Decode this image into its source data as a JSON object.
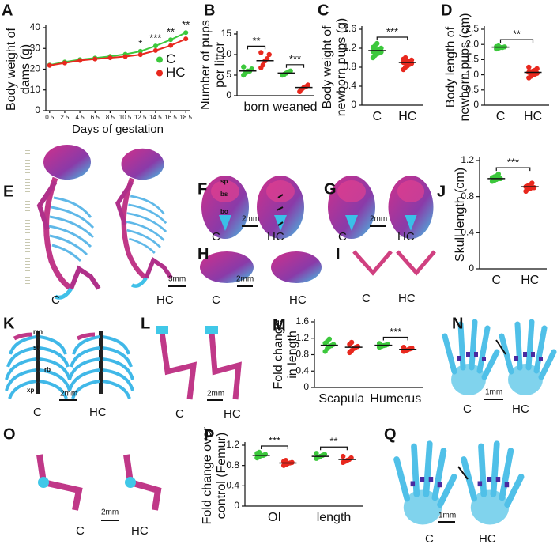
{
  "chart_data": [
    {
      "panel": "A",
      "type": "line",
      "ylabel": "Body weight of dams (g)",
      "xlabel": "Days of gestation",
      "x": [
        0.5,
        2.5,
        4.5,
        6.5,
        8.5,
        10.5,
        12.5,
        14.5,
        16.5,
        18.5
      ],
      "xlim": [
        0,
        19
      ],
      "xticks": [
        0.5,
        2.5,
        4.5,
        6.5,
        8.5,
        10.5,
        12.5,
        14.5,
        16.5,
        18.5
      ],
      "ylim": [
        0,
        40
      ],
      "yticks": [
        0,
        10,
        20,
        30,
        40
      ],
      "legend": "right",
      "series": [
        {
          "name": "C",
          "color": "#3cc83c",
          "values": [
            22,
            23.5,
            24.6,
            25.4,
            26.2,
            27.2,
            28.6,
            31.2,
            34.2,
            37.6
          ]
        },
        {
          "name": "HC",
          "color": "#e8281e",
          "values": [
            21.8,
            23,
            24.2,
            24.9,
            25.5,
            26.1,
            27,
            29,
            31.4,
            34.6
          ]
        }
      ],
      "annotations": [
        {
          "x": 12.5,
          "text": "*"
        },
        {
          "x": 14.5,
          "text": "***"
        },
        {
          "x": 16.5,
          "text": "**"
        },
        {
          "x": 18.5,
          "text": "**"
        }
      ]
    },
    {
      "panel": "B",
      "type": "strip",
      "ylabel": "Number of pups per litter",
      "categories": [
        "born",
        "weaned"
      ],
      "ylim": [
        0,
        15
      ],
      "yticks": [
        0,
        5,
        10,
        15
      ],
      "series": [
        {
          "color": "#3cc83c",
          "values": [
            [
              5,
              5.5,
              6,
              6,
              6.5,
              7
            ],
            [
              5,
              5.2,
              5.5,
              5.8,
              6
            ]
          ],
          "means": [
            6,
            5.5
          ]
        },
        {
          "color": "#e8281e",
          "values": [
            [
              6.8,
              7.5,
              8.5,
              9,
              10,
              10.5
            ],
            [
              1,
              1.6,
              2,
              2.2,
              2.6
            ]
          ],
          "means": [
            8.5,
            2
          ]
        }
      ],
      "significance": [
        "**",
        "***"
      ]
    },
    {
      "panel": "C",
      "type": "strip",
      "ylabel": "Body weight of newborn pups (g)",
      "categories": [
        "C",
        "HC"
      ],
      "ylim": [
        0,
        1.6
      ],
      "yticks": [
        0,
        0.4,
        0.8,
        1.2,
        1.6
      ],
      "series": [
        {
          "color": "#3cc83c",
          "values": [
            [
              1.0,
              1.05,
              1.08,
              1.1,
              1.12,
              1.13,
              1.15,
              1.16,
              1.18,
              1.2,
              1.22,
              1.25,
              1.3
            ],
            null
          ],
          "means": [
            1.15,
            null
          ]
        },
        {
          "color": "#e8281e",
          "values": [
            null,
            [
              0.75,
              0.8,
              0.83,
              0.86,
              0.88,
              0.9,
              0.9,
              0.92,
              0.93,
              0.95,
              0.97,
              1.0
            ]
          ],
          "means": [
            null,
            0.9
          ]
        }
      ],
      "significance": "***"
    },
    {
      "panel": "D",
      "type": "strip",
      "ylabel": "Body length of newborn pups (cm)",
      "categories": [
        "C",
        "HC"
      ],
      "ylim": [
        0,
        2.5
      ],
      "yticks": [
        0,
        0.5,
        {
          "value": 1,
          "label": "1.0"
        },
        1.5,
        {
          "value": 2,
          "label": "2.0"
        },
        2.5
      ],
      "series": [
        {
          "color": "#3cc83c",
          "values": [
            [
              1.85,
              1.88,
              1.9,
              1.9,
              1.92,
              1.93,
              1.95
            ],
            null
          ],
          "means": [
            1.91,
            null
          ]
        },
        {
          "color": "#e8281e",
          "values": [
            null,
            [
              0.9,
              0.95,
              1.0,
              1.02,
              1.05,
              1.08,
              1.1,
              1.12,
              1.15,
              1.2,
              1.25
            ]
          ],
          "means": [
            null,
            1.08
          ]
        }
      ],
      "significance": "**"
    },
    {
      "panel": "J",
      "type": "strip",
      "ylabel": "Skull length (cm)",
      "categories": [
        "C",
        "HC"
      ],
      "ylim": [
        0,
        1.2
      ],
      "yticks": [
        0,
        0.4,
        0.8,
        1.2
      ],
      "series": [
        {
          "color": "#3cc83c",
          "values": [
            [
              0.97,
              0.98,
              0.99,
              1.0,
              1.0,
              1.01,
              1.02,
              1.03,
              1.05
            ],
            null
          ],
          "means": [
            1.0,
            null
          ]
        },
        {
          "color": "#e8281e",
          "values": [
            null,
            [
              0.86,
              0.88,
              0.89,
              0.9,
              0.9,
              0.91,
              0.92,
              0.93,
              0.95
            ]
          ],
          "means": [
            null,
            0.91
          ]
        }
      ],
      "significance": "***"
    },
    {
      "panel": "M",
      "type": "strip",
      "ylabel": "Fold change in length",
      "categories": [
        "Scapula",
        "Humerus"
      ],
      "ylim": [
        0,
        1.6
      ],
      "yticks": [
        0,
        0.4,
        0.8,
        1.2,
        1.6
      ],
      "series": [
        {
          "color": "#3cc83c",
          "values": [
            [
              0.88,
              0.95,
              1.0,
              1.02,
              1.05,
              1.08,
              1.12,
              1.18
            ],
            [
              0.98,
              1.0,
              1.02,
              1.03,
              1.05,
              1.07
            ]
          ],
          "means": [
            1.03,
            1.03
          ]
        },
        {
          "color": "#e8281e",
          "values": [
            [
              0.85,
              0.9,
              0.95,
              0.98,
              1.0,
              1.05,
              1.1
            ],
            [
              0.88,
              0.9,
              0.92,
              0.94,
              0.96,
              0.98
            ]
          ],
          "means": [
            0.98,
            0.93
          ]
        }
      ],
      "significance": [
        null,
        "***"
      ]
    },
    {
      "panel": "P",
      "type": "strip",
      "ylabel": "Fold change over control (Femur)",
      "categories": [
        "OI",
        "length"
      ],
      "ylim": [
        0,
        1.2
      ],
      "yticks": [
        0,
        0.4,
        0.8,
        1.2
      ],
      "series": [
        {
          "color": "#3cc83c",
          "values": [
            [
              0.95,
              0.97,
              1.0,
              1.0,
              1.02,
              1.04,
              1.06
            ],
            [
              0.94,
              0.96,
              0.98,
              1.0,
              1.02,
              1.04
            ]
          ],
          "means": [
            1.0,
            0.98
          ]
        },
        {
          "color": "#e8281e",
          "values": [
            [
              0.8,
              0.82,
              0.84,
              0.85,
              0.86,
              0.88,
              0.9
            ],
            [
              0.86,
              0.88,
              0.9,
              0.92,
              0.95,
              0.98
            ]
          ],
          "means": [
            0.85,
            0.92
          ]
        }
      ],
      "significance": [
        "***",
        "**"
      ]
    }
  ],
  "images": [
    {
      "letter": "E",
      "labels": [
        "C",
        "HC"
      ],
      "scale": "3mm"
    },
    {
      "letter": "F",
      "labels": [
        "C",
        "HC"
      ],
      "scale": "2mm",
      "annotations": [
        "sp",
        "bs",
        "bo"
      ]
    },
    {
      "letter": "G",
      "labels": [
        "C",
        "HC"
      ],
      "scale": "2mm"
    },
    {
      "letter": "H",
      "labels": [
        "C",
        "HC"
      ],
      "scale": "2mm"
    },
    {
      "letter": "I",
      "labels": [
        "C",
        "HC"
      ]
    },
    {
      "letter": "K",
      "labels": [
        "C",
        "HC"
      ],
      "scale": "2mm",
      "annotations": [
        "mn",
        "st",
        "rb",
        "xp"
      ]
    },
    {
      "letter": "L",
      "labels": [
        "C",
        "HC"
      ],
      "scale": "2mm"
    },
    {
      "letter": "N",
      "labels": [
        "C",
        "HC"
      ],
      "scale": "1mm"
    },
    {
      "letter": "O",
      "labels": [
        "C",
        "HC"
      ],
      "scale": "2mm"
    },
    {
      "letter": "Q",
      "labels": [
        "C",
        "HC"
      ],
      "scale": "1mm"
    }
  ]
}
